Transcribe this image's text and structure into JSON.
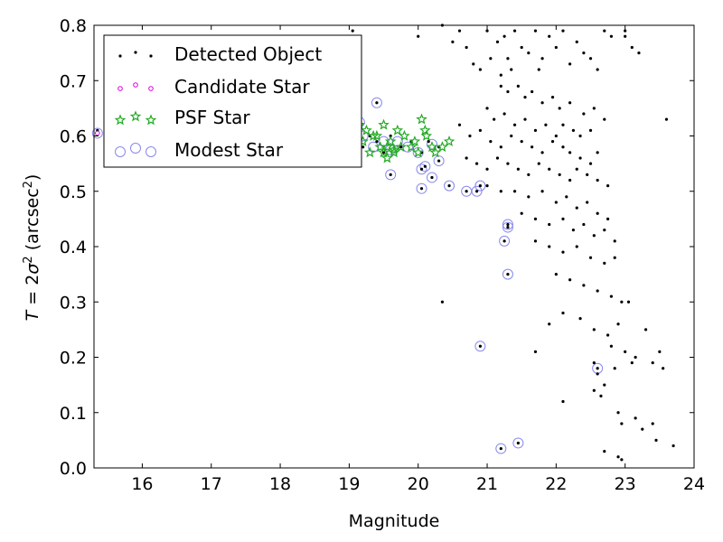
{
  "chart_data": {
    "type": "scatter",
    "title": "",
    "xlabel": "Magnitude",
    "ylabel": "T = 2σ² (arcsec²)",
    "ylabel_parts": {
      "var": "T",
      "eq": " = 2",
      "sigma": "σ",
      "sup": "2",
      "rest": " (arcsec",
      "close": ")"
    },
    "xlim": [
      15.3,
      24
    ],
    "ylim": [
      0.0,
      0.8
    ],
    "xticks": [
      16,
      17,
      18,
      19,
      20,
      21,
      22,
      23,
      24
    ],
    "yticks": [
      0.0,
      0.1,
      0.2,
      0.3,
      0.4,
      0.5,
      0.6,
      0.7,
      0.8
    ],
    "grid": false,
    "legend_position": "top-left",
    "series": [
      {
        "name": "Detected Object",
        "marker": "dot",
        "color": "#000000",
        "points": [
          [
            19.05,
            0.79
          ],
          [
            20.0,
            0.78
          ],
          [
            20.35,
            0.8
          ],
          [
            20.5,
            0.77
          ],
          [
            20.6,
            0.79
          ],
          [
            20.7,
            0.76
          ],
          [
            20.8,
            0.73
          ],
          [
            20.9,
            0.72
          ],
          [
            21.0,
            0.79
          ],
          [
            21.05,
            0.74
          ],
          [
            21.15,
            0.77
          ],
          [
            21.2,
            0.71
          ],
          [
            21.25,
            0.78
          ],
          [
            21.3,
            0.74
          ],
          [
            21.35,
            0.72
          ],
          [
            21.4,
            0.79
          ],
          [
            21.5,
            0.76
          ],
          [
            21.6,
            0.75
          ],
          [
            21.7,
            0.79
          ],
          [
            21.75,
            0.72
          ],
          [
            21.8,
            0.74
          ],
          [
            21.9,
            0.78
          ],
          [
            22.0,
            0.76
          ],
          [
            22.1,
            0.79
          ],
          [
            22.2,
            0.73
          ],
          [
            22.3,
            0.77
          ],
          [
            22.4,
            0.75
          ],
          [
            22.5,
            0.74
          ],
          [
            22.6,
            0.72
          ],
          [
            22.7,
            0.79
          ],
          [
            22.8,
            0.78
          ],
          [
            23.0,
            0.79
          ],
          [
            23.1,
            0.76
          ],
          [
            21.2,
            0.69
          ],
          [
            21.3,
            0.68
          ],
          [
            21.45,
            0.69
          ],
          [
            21.55,
            0.67
          ],
          [
            21.65,
            0.68
          ],
          [
            21.8,
            0.66
          ],
          [
            21.95,
            0.67
          ],
          [
            22.05,
            0.65
          ],
          [
            22.2,
            0.66
          ],
          [
            22.4,
            0.64
          ],
          [
            22.55,
            0.65
          ],
          [
            22.7,
            0.63
          ],
          [
            21.0,
            0.65
          ],
          [
            21.1,
            0.63
          ],
          [
            21.25,
            0.64
          ],
          [
            21.4,
            0.62
          ],
          [
            21.55,
            0.63
          ],
          [
            21.7,
            0.61
          ],
          [
            21.85,
            0.62
          ],
          [
            22.0,
            0.6
          ],
          [
            22.1,
            0.62
          ],
          [
            22.25,
            0.61
          ],
          [
            22.35,
            0.6
          ],
          [
            22.5,
            0.61
          ],
          [
            20.6,
            0.62
          ],
          [
            20.75,
            0.6
          ],
          [
            20.9,
            0.61
          ],
          [
            21.05,
            0.59
          ],
          [
            21.2,
            0.58
          ],
          [
            21.35,
            0.6
          ],
          [
            21.5,
            0.59
          ],
          [
            21.65,
            0.58
          ],
          [
            21.8,
            0.57
          ],
          [
            21.95,
            0.59
          ],
          [
            22.1,
            0.58
          ],
          [
            22.2,
            0.57
          ],
          [
            22.35,
            0.56
          ],
          [
            22.5,
            0.55
          ],
          [
            22.6,
            0.57
          ],
          [
            20.7,
            0.56
          ],
          [
            20.85,
            0.55
          ],
          [
            21.0,
            0.54
          ],
          [
            21.15,
            0.56
          ],
          [
            21.3,
            0.55
          ],
          [
            21.45,
            0.54
          ],
          [
            21.6,
            0.53
          ],
          [
            21.75,
            0.55
          ],
          [
            21.9,
            0.54
          ],
          [
            22.05,
            0.53
          ],
          [
            22.2,
            0.52
          ],
          [
            22.3,
            0.54
          ],
          [
            22.45,
            0.53
          ],
          [
            22.6,
            0.52
          ],
          [
            22.75,
            0.51
          ],
          [
            21.0,
            0.51
          ],
          [
            21.2,
            0.5
          ],
          [
            21.4,
            0.5
          ],
          [
            21.6,
            0.49
          ],
          [
            21.8,
            0.5
          ],
          [
            22.0,
            0.48
          ],
          [
            22.15,
            0.49
          ],
          [
            22.3,
            0.47
          ],
          [
            22.45,
            0.48
          ],
          [
            22.6,
            0.46
          ],
          [
            22.75,
            0.45
          ],
          [
            21.5,
            0.46
          ],
          [
            21.7,
            0.45
          ],
          [
            21.9,
            0.44
          ],
          [
            22.1,
            0.45
          ],
          [
            22.25,
            0.43
          ],
          [
            22.4,
            0.44
          ],
          [
            22.55,
            0.42
          ],
          [
            22.7,
            0.43
          ],
          [
            22.85,
            0.41
          ],
          [
            21.7,
            0.41
          ],
          [
            21.9,
            0.4
          ],
          [
            22.1,
            0.39
          ],
          [
            22.3,
            0.4
          ],
          [
            22.5,
            0.38
          ],
          [
            22.7,
            0.37
          ],
          [
            22.85,
            0.38
          ],
          [
            22.0,
            0.35
          ],
          [
            22.2,
            0.34
          ],
          [
            22.4,
            0.33
          ],
          [
            22.6,
            0.32
          ],
          [
            22.8,
            0.31
          ],
          [
            22.95,
            0.3
          ],
          [
            23.05,
            0.3
          ],
          [
            20.35,
            0.3
          ],
          [
            22.1,
            0.28
          ],
          [
            22.35,
            0.27
          ],
          [
            22.55,
            0.25
          ],
          [
            22.75,
            0.24
          ],
          [
            22.9,
            0.26
          ],
          [
            23.3,
            0.25
          ],
          [
            21.9,
            0.26
          ],
          [
            22.8,
            0.22
          ],
          [
            23.0,
            0.21
          ],
          [
            23.15,
            0.2
          ],
          [
            23.5,
            0.21
          ],
          [
            21.7,
            0.21
          ],
          [
            22.55,
            0.19
          ],
          [
            22.85,
            0.18
          ],
          [
            23.1,
            0.19
          ],
          [
            23.4,
            0.19
          ],
          [
            23.55,
            0.18
          ],
          [
            22.6,
            0.17
          ],
          [
            22.7,
            0.15
          ],
          [
            22.55,
            0.14
          ],
          [
            22.65,
            0.13
          ],
          [
            22.1,
            0.12
          ],
          [
            22.9,
            0.1
          ],
          [
            22.95,
            0.08
          ],
          [
            23.15,
            0.09
          ],
          [
            23.25,
            0.07
          ],
          [
            23.4,
            0.08
          ],
          [
            23.45,
            0.05
          ],
          [
            23.7,
            0.04
          ],
          [
            22.7,
            0.03
          ],
          [
            22.9,
            0.02
          ],
          [
            22.95,
            0.015
          ],
          [
            23.6,
            0.63
          ],
          [
            23.2,
            0.75
          ],
          [
            23.0,
            0.78
          ],
          [
            15.35,
            0.61
          ],
          [
            19.1,
            0.6
          ],
          [
            19.2,
            0.58
          ],
          [
            19.3,
            0.6
          ],
          [
            19.4,
            0.59
          ],
          [
            19.5,
            0.57
          ],
          [
            19.6,
            0.6
          ],
          [
            19.75,
            0.58
          ],
          [
            19.9,
            0.59
          ],
          [
            20.05,
            0.57
          ],
          [
            20.15,
            0.59
          ],
          [
            20.3,
            0.58
          ],
          [
            19.4,
            0.66
          ],
          [
            19.6,
            0.53
          ],
          [
            20.05,
            0.54
          ],
          [
            20.1,
            0.545
          ],
          [
            20.05,
            0.505
          ],
          [
            20.2,
            0.525
          ],
          [
            20.3,
            0.555
          ],
          [
            20.45,
            0.51
          ],
          [
            20.7,
            0.5
          ],
          [
            20.85,
            0.5
          ],
          [
            20.9,
            0.51
          ],
          [
            21.3,
            0.44
          ],
          [
            21.3,
            0.435
          ],
          [
            21.25,
            0.41
          ],
          [
            21.3,
            0.35
          ],
          [
            20.9,
            0.22
          ],
          [
            22.6,
            0.18
          ],
          [
            21.2,
            0.035
          ],
          [
            21.45,
            0.045
          ]
        ]
      },
      {
        "name": "Candidate Star",
        "marker": "dot",
        "color": "#dd00dd",
        "points": [
          [
            15.35,
            0.605
          ]
        ]
      },
      {
        "name": "PSF Star",
        "marker": "star",
        "color": "#22aa22",
        "points": [
          [
            19.05,
            0.6
          ],
          [
            19.1,
            0.58
          ],
          [
            19.15,
            0.62
          ],
          [
            19.2,
            0.59
          ],
          [
            19.25,
            0.61
          ],
          [
            19.3,
            0.57
          ],
          [
            19.35,
            0.6
          ],
          [
            19.4,
            0.6
          ],
          [
            19.45,
            0.58
          ],
          [
            19.5,
            0.62
          ],
          [
            19.55,
            0.56
          ],
          [
            19.6,
            0.59
          ],
          [
            19.65,
            0.57
          ],
          [
            19.7,
            0.61
          ],
          [
            19.75,
            0.58
          ],
          [
            19.8,
            0.6
          ],
          [
            19.9,
            0.58
          ],
          [
            19.95,
            0.59
          ],
          [
            20.0,
            0.57
          ],
          [
            20.05,
            0.63
          ],
          [
            20.1,
            0.61
          ],
          [
            20.12,
            0.6
          ],
          [
            20.2,
            0.58
          ],
          [
            20.25,
            0.57
          ],
          [
            20.35,
            0.58
          ],
          [
            20.45,
            0.59
          ],
          [
            19.5,
            0.57
          ],
          [
            19.55,
            0.58
          ],
          [
            19.65,
            0.575
          ]
        ]
      },
      {
        "name": "Modest Star",
        "marker": "circle",
        "color": "#8888ee",
        "points": [
          [
            19.4,
            0.66
          ],
          [
            19.6,
            0.53
          ],
          [
            20.05,
            0.54
          ],
          [
            20.1,
            0.545
          ],
          [
            20.05,
            0.505
          ],
          [
            20.2,
            0.525
          ],
          [
            20.3,
            0.555
          ],
          [
            20.45,
            0.51
          ],
          [
            20.7,
            0.5
          ],
          [
            20.85,
            0.5
          ],
          [
            20.9,
            0.51
          ],
          [
            21.3,
            0.44
          ],
          [
            21.3,
            0.435
          ],
          [
            21.25,
            0.41
          ],
          [
            21.3,
            0.35
          ],
          [
            20.9,
            0.22
          ],
          [
            22.6,
            0.18
          ],
          [
            21.2,
            0.035
          ],
          [
            21.45,
            0.045
          ],
          [
            19.1,
            0.61
          ],
          [
            19.2,
            0.6
          ],
          [
            19.35,
            0.58
          ],
          [
            19.5,
            0.59
          ],
          [
            19.6,
            0.575
          ],
          [
            19.7,
            0.59
          ],
          [
            19.85,
            0.58
          ],
          [
            20.0,
            0.57
          ],
          [
            20.2,
            0.585
          ],
          [
            15.35,
            0.605
          ],
          [
            19.15,
            0.625
          ]
        ]
      }
    ]
  }
}
